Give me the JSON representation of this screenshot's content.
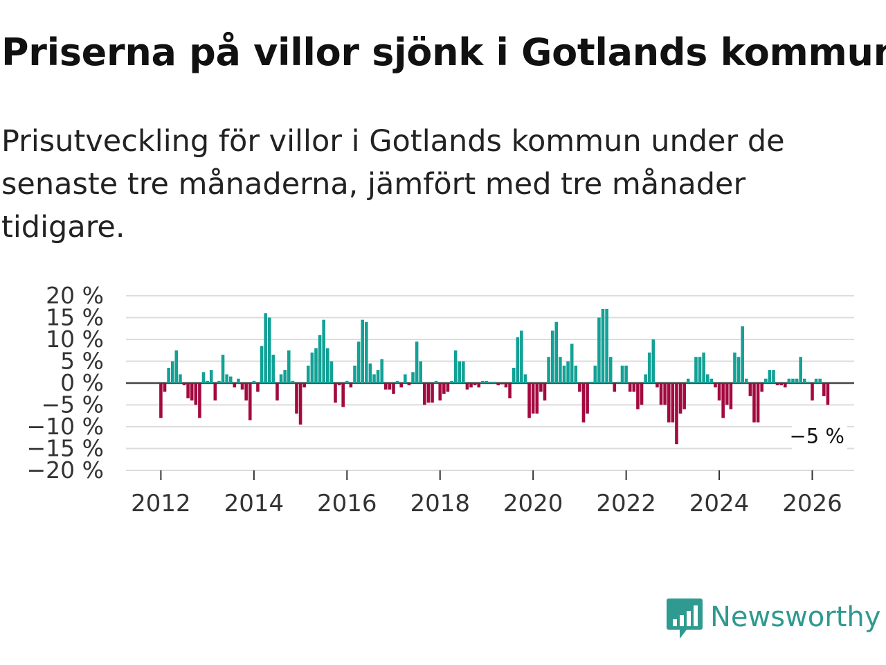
{
  "title": "Priserna på villor sjönk i Gotlands kommun",
  "subtitle": "Prisutveckling för villor i Gotlands kommun under de senaste tre månaderna, jämfört med tre månader tidigare.",
  "brand": "Newsworthy",
  "colors": {
    "positive": "#13a196",
    "negative": "#a3093f",
    "brand": "#2f9a8f"
  },
  "chart_data": {
    "type": "bar",
    "title": "Priserna på villor sjönk i Gotlands kommun",
    "xlabel": "",
    "ylabel": "",
    "ylim": [
      -20,
      20
    ],
    "xlim": [
      2011.25,
      2026.9
    ],
    "y_ticks": [
      20,
      15,
      10,
      5,
      0,
      -5,
      -10,
      -15,
      -20
    ],
    "y_tick_labels": [
      "20 %",
      "15 %",
      "10 %",
      "5 %",
      "0 %",
      "−5 %",
      "−10 %",
      "−15 %",
      "−20 %"
    ],
    "x_ticks": [
      2012,
      2014,
      2016,
      2018,
      2020,
      2022,
      2024,
      2026
    ],
    "x_tick_labels": [
      "2012",
      "2014",
      "2016",
      "2018",
      "2020",
      "2022",
      "2024",
      "2026"
    ],
    "start": "2012-01",
    "interval": "month",
    "end_label": "−5 %",
    "values": [
      -8,
      -2,
      3.5,
      5,
      7.5,
      2,
      -0.5,
      -3.5,
      -4,
      -5,
      -8,
      2.5,
      0.5,
      3,
      -4,
      0.5,
      6.5,
      2,
      1.5,
      -1,
      1,
      -1.5,
      -4,
      -8.5,
      0.5,
      -2,
      8.5,
      16,
      15,
      6.5,
      -4,
      2,
      3,
      7.5,
      0.5,
      -7,
      -9.5,
      -1,
      4,
      7,
      8,
      11,
      14.5,
      8,
      5,
      -4.5,
      -0.5,
      -5.5,
      0.5,
      -1,
      4,
      9.5,
      14.5,
      14,
      4.5,
      2,
      3,
      5.5,
      -1.5,
      -1.5,
      -2.5,
      0.5,
      -1,
      2,
      -0.5,
      2.5,
      9.5,
      5,
      -5,
      -4.5,
      -4.5,
      0.5,
      -4,
      -2.5,
      -2,
      0.5,
      7.5,
      5,
      5,
      -1.5,
      -1,
      -0.5,
      -1,
      0.5,
      0.5,
      0.3,
      0.3,
      -0.5,
      -0.3,
      -1,
      -3.5,
      3.5,
      10.5,
      12,
      2,
      -8,
      -7,
      -7,
      -2,
      -4,
      6,
      12,
      14,
      6,
      4,
      5,
      9,
      4,
      -2,
      -9,
      -7,
      0.3,
      4,
      15,
      17,
      17,
      6,
      -2,
      0.3,
      4,
      4,
      -2,
      -2,
      -6,
      -5,
      2,
      7,
      10,
      -1,
      -5,
      -5,
      -9,
      -9,
      -14,
      -7,
      -6,
      1,
      0.3,
      6,
      6,
      7,
      2,
      1,
      -1,
      -4,
      -8,
      -5,
      -6,
      7,
      6,
      13,
      1,
      -3,
      -9,
      -9,
      -2,
      1,
      3,
      3,
      -0.5,
      -0.5,
      -1,
      1,
      1,
      1,
      6,
      1,
      0.3,
      -4,
      1,
      1,
      -3,
      -5
    ]
  }
}
